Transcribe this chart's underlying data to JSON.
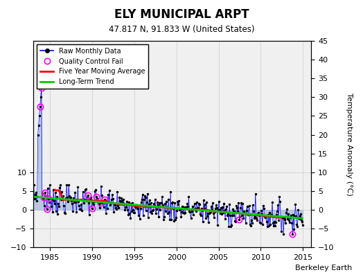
{
  "title": "ELY MUNICIPAL ARPT",
  "subtitle": "47.817 N, 91.833 W (United States)",
  "ylabel_right": "Temperature Anomaly (°C)",
  "credit": "Berkeley Earth",
  "xlim": [
    1983.0,
    2016.0
  ],
  "ylim": [
    -10,
    45
  ],
  "yticks_left": [
    -10,
    -5,
    0,
    5,
    10
  ],
  "yticks_right": [
    -10,
    -5,
    0,
    5,
    10,
    15,
    20,
    25,
    30,
    35,
    40,
    45
  ],
  "xticks": [
    1985,
    1990,
    1995,
    2000,
    2005,
    2010,
    2015
  ],
  "bg_color": "#e8e8e8",
  "plot_bg_color": "#ffffff",
  "line_color_raw": "#0000ff",
  "dot_color_raw": "#000000",
  "qc_color": "#ff00ff",
  "moving_avg_color": "#ff0000",
  "trend_color": "#00cc00"
}
